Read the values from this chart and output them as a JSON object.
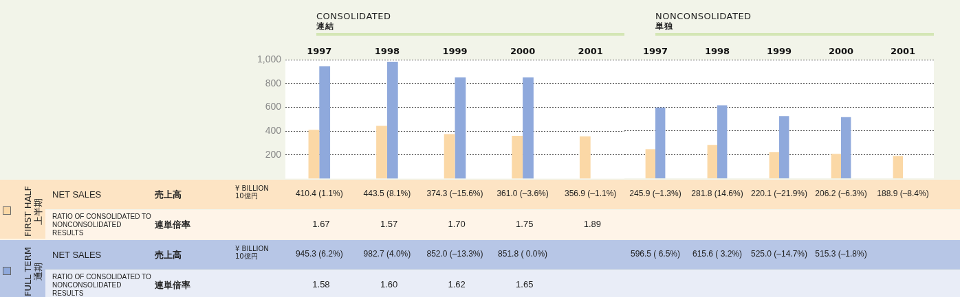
{
  "chart_data": [
    {
      "type": "bar",
      "title": "CONSOLIDATED",
      "subtitle": "連結",
      "ylabel": "¥ BILLION 10億円",
      "categories": [
        "1997",
        "1998",
        "1999",
        "2000",
        "2001"
      ],
      "ylim": [
        0,
        1000
      ],
      "yticks": [
        200,
        400,
        600,
        800,
        {
          "value": 1000,
          "label": "1,000"
        }
      ],
      "grid": "y",
      "legend": "bottom left",
      "series": [
        {
          "name": "FIRST HALF 上半期",
          "color": "#fbd8a6",
          "values": [
            410.4,
            443.5,
            374.3,
            361.0,
            356.9
          ],
          "value_labels": [
            "410.4 (1.1%)",
            "443.5 (8.1%)",
            "374.3 (–15.6%)",
            "361.0 (–3.6%)",
            "356.9 (–1.1%)"
          ]
        },
        {
          "name": "FULL TERM 通期",
          "color": "#8fa9dc",
          "values": [
            945.3,
            982.7,
            852.0,
            851.8,
            null
          ],
          "value_labels": [
            "945.3 (6.2%)",
            "982.7 (4.0%)",
            "852.0 (–13.3%)",
            "851.8 ( 0.0%)",
            null
          ]
        }
      ],
      "annotations": [
        "NET SALES",
        "売上高",
        "RATIO OF CONSOLIDATED TO NONCONSOLIDATED RESULTS",
        "連単倍率",
        "1.67",
        "1.57",
        "1.70",
        "1.75",
        "1.89",
        "1.58",
        "1.60",
        "1.62",
        "1.65"
      ]
    },
    {
      "type": "bar",
      "title": "NONCONSOLIDATED",
      "subtitle": "単独",
      "categories": [
        "1997",
        "1998",
        "1999",
        "2000",
        "2001"
      ],
      "ylim": [
        0,
        1000
      ],
      "yticks": [
        200,
        400,
        600,
        800,
        1000
      ],
      "grid": "y",
      "tick_labels": "x",
      "series": [
        {
          "color": "#fbd8a6",
          "values": [
            245.9,
            281.8,
            220.1,
            206.2,
            188.9
          ],
          "value_labels": [
            "245.9 (–1.3%)",
            "281.8 (14.6%)",
            "220.1 (–21.9%)",
            "206.2 (–6.3%)",
            "188.9 (–8.4%)"
          ]
        },
        {
          "color": "#8fa9dc",
          "values": [
            596.5,
            615.6,
            525.0,
            515.3,
            null
          ],
          "value_labels": [
            "596.5 ( 6.5%)",
            "615.6 ( 3.2%)",
            "525.0 (–14.7%)",
            "515.3 (–1.8%)",
            null
          ]
        }
      ]
    }
  ]
}
